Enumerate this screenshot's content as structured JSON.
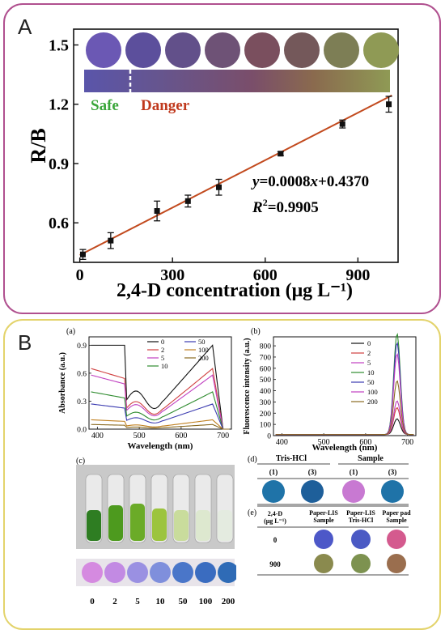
{
  "panel_a": {
    "label": "A",
    "chart_data": {
      "type": "scatter",
      "xlabel": "2,4-D concentration (μg L⁻¹)",
      "ylabel": "R/B",
      "xticks": [
        "0",
        "300",
        "600",
        "900"
      ],
      "yticks": [
        "0.6",
        "0.9",
        "1.2",
        "1.5"
      ],
      "xlim": [
        -20,
        1030
      ],
      "ylim": [
        0.4,
        1.58
      ],
      "points": [
        {
          "x": 10,
          "y": 0.44,
          "err": 0.025
        },
        {
          "x": 100,
          "y": 0.51,
          "err": 0.04
        },
        {
          "x": 250,
          "y": 0.66,
          "err": 0.05
        },
        {
          "x": 350,
          "y": 0.71,
          "err": 0.03
        },
        {
          "x": 450,
          "y": 0.78,
          "err": 0.04
        },
        {
          "x": 650,
          "y": 0.95,
          "err": 0.01
        },
        {
          "x": 850,
          "y": 1.1,
          "err": 0.02
        },
        {
          "x": 1000,
          "y": 1.2,
          "err": 0.04
        }
      ],
      "fit": {
        "slope": 0.0008,
        "intercept": 0.437
      },
      "equation_parts": [
        "y",
        "=0.0008",
        "x",
        "+0.4370"
      ],
      "r2_parts": [
        "R",
        "2",
        "=0.9905"
      ],
      "safe_label": "Safe",
      "danger_label": "Danger",
      "circle_colors": [
        "#6b58b4",
        "#5c4f9c",
        "#62508a",
        "#6e5276",
        "#7a4f5e",
        "#74585a",
        "#7d7e55",
        "#8f9a55"
      ],
      "bar_gradient": [
        "#5a55aa",
        "#66558e",
        "#7a4e6a",
        "#8a6a4e",
        "#8f9a55"
      ],
      "colors": {
        "marker": "#111111",
        "fit_line": "#c24a1e",
        "safe": "#3aa63a",
        "danger": "#c0391d"
      }
    }
  },
  "panel_b": {
    "label": "B",
    "sub_a": {
      "tag": "(a)",
      "xlabel": "Wavelength (nm)",
      "ylabel": "Absorbance (a.u.)",
      "xticks": [
        "400",
        "500",
        "600",
        "700"
      ],
      "yticks": [
        "0.0",
        "0.3",
        "0.6",
        "0.9"
      ],
      "legend": [
        "0",
        "2",
        "5",
        "10",
        "50",
        "100",
        "200"
      ],
      "colors": [
        "#111111",
        "#d04040",
        "#c040c0",
        "#2e8b2e",
        "#3a3ab0",
        "#c08020",
        "#8a6a20"
      ]
    },
    "sub_b": {
      "tag": "(b)",
      "xlabel": "Wavelength (nm)",
      "ylabel": "Fluorescence intensity (a.u.)",
      "xticks": [
        "400",
        "500",
        "600",
        "700"
      ],
      "yticks": [
        "0",
        "100",
        "200",
        "300",
        "400",
        "500",
        "600",
        "700",
        "800"
      ],
      "legend": [
        "0",
        "2",
        "5",
        "10",
        "50",
        "100",
        "200"
      ],
      "colors": [
        "#111111",
        "#d04040",
        "#c040c0",
        "#2e8b2e",
        "#3a3ab0",
        "#c040c0",
        "#8a6a20"
      ]
    },
    "sub_c": {
      "tag": "(c)",
      "labels": [
        "0",
        "2",
        "5",
        "10",
        "50",
        "100",
        "200"
      ],
      "tube_colors": [
        "#2e7d22",
        "#4d9a1e",
        "#6bab28",
        "#9cc43e",
        "#c9dc9c",
        "#dde8cf",
        "#e4ebe0"
      ],
      "circle_colors": [
        "#d58ae0",
        "#c28ae3",
        "#9a90e2",
        "#7f8fdc",
        "#4a76c9",
        "#3a6cc0",
        "#2f6bb6"
      ]
    },
    "sub_d": {
      "tag": "(d)",
      "headers": [
        "Tris-HCl",
        "Sample"
      ],
      "cols": [
        "(1)",
        "(3)",
        "(1)",
        "(3)"
      ],
      "colors": [
        "#1f73a8",
        "#1e5f9a",
        "#c879d2",
        "#1f73a8"
      ]
    },
    "sub_e": {
      "tag": "(e)",
      "row_header": [
        "2,4-D",
        "(μg L⁻¹)"
      ],
      "col_headers": [
        [
          "Paper-LIS",
          "Sample"
        ],
        [
          "Paper-LIS",
          "Tris-HCl"
        ],
        [
          "Paper pad",
          "Sample"
        ]
      ],
      "rows": [
        {
          "label": "0",
          "colors": [
            "#4d58c8",
            "#4b5ac4",
            "#d45a8e"
          ]
        },
        {
          "label": "900",
          "colors": [
            "#8a8a4e",
            "#7d9250",
            "#9a6e4e"
          ]
        }
      ]
    }
  }
}
